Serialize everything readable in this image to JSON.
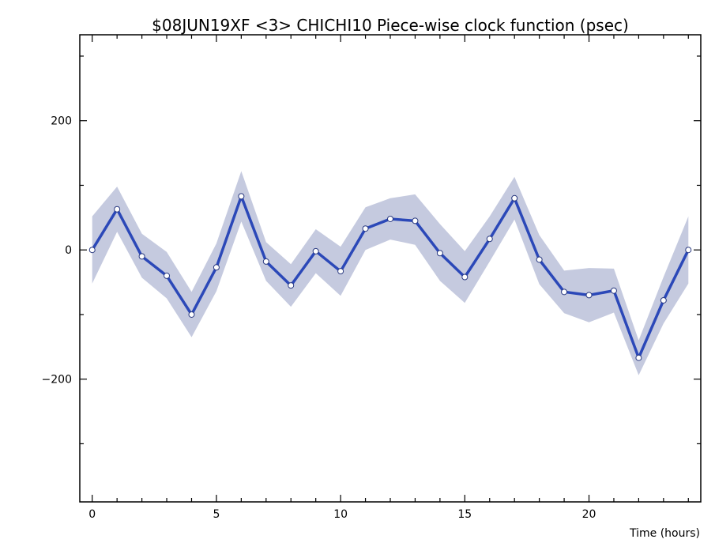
{
  "chart_data": {
    "type": "line",
    "title": "$08JUN19XF <3>   CHICHI10  Piece-wise clock function (psec)",
    "xlabel": "Time (hours)",
    "ylabel": "",
    "xlim": [
      -0.5,
      24.5
    ],
    "ylim": [
      -390,
      333
    ],
    "x_ticks": [
      0,
      5,
      10,
      15,
      20
    ],
    "x_tick_labels": [
      "0",
      "5",
      "10",
      "15",
      "20"
    ],
    "y_ticks": [
      200,
      0,
      -200
    ],
    "y_tick_labels": [
      "200",
      "0",
      "−200"
    ],
    "grid": false,
    "legend": "none",
    "colors": {
      "line": "#2b48b8",
      "band": "#c5cadf",
      "marker_fill": "#ffffff",
      "axis": "#000000"
    },
    "series": [
      {
        "x": [
          0,
          1,
          2,
          3,
          4,
          5,
          6,
          7,
          8,
          9,
          10,
          11,
          12,
          13,
          14,
          15,
          16,
          17,
          18,
          19,
          20,
          21,
          22,
          23,
          24
        ],
        "values": [
          0,
          63,
          -10,
          -40,
          -100,
          -27,
          83,
          -18,
          -55,
          -2,
          -33,
          33,
          48,
          45,
          -5,
          -42,
          17,
          80,
          -15,
          -65,
          -70,
          -63,
          -167,
          -78,
          0
        ],
        "upper": [
          52,
          98,
          25,
          -3,
          -65,
          10,
          122,
          12,
          -22,
          32,
          5,
          66,
          80,
          86,
          40,
          -2,
          52,
          113,
          23,
          -32,
          -28,
          -29,
          -140,
          -42,
          52
        ],
        "lower": [
          -52,
          28,
          -43,
          -75,
          -135,
          -64,
          44,
          -48,
          -88,
          -36,
          -71,
          0,
          16,
          8,
          -48,
          -82,
          -18,
          47,
          -53,
          -98,
          -112,
          -97,
          -194,
          -114,
          -52
        ]
      }
    ]
  }
}
